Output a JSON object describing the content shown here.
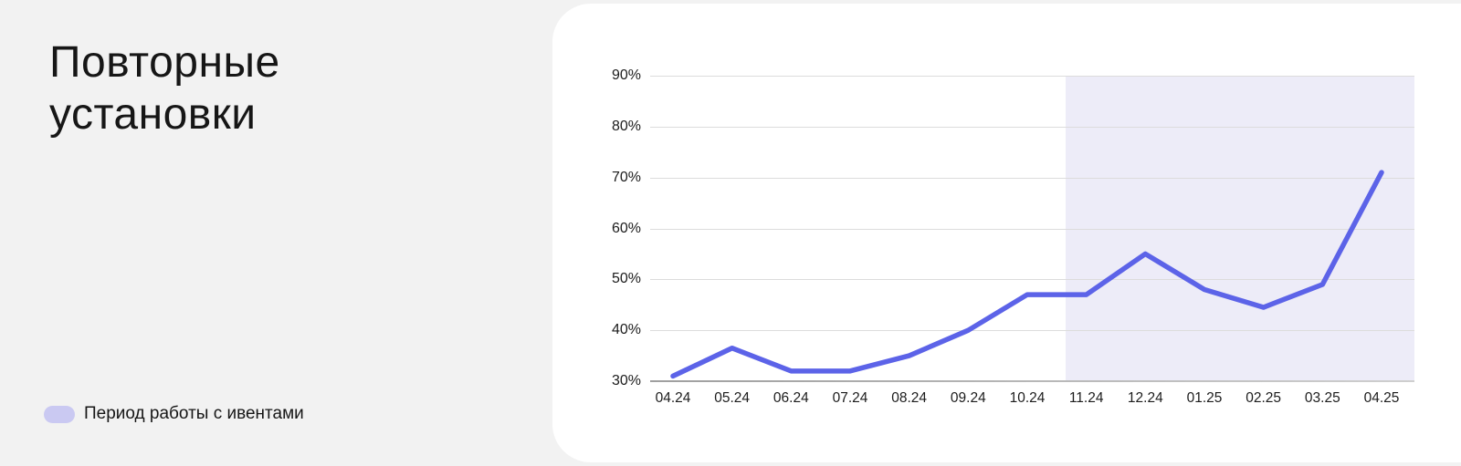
{
  "title": "Повторные установки",
  "legend": {
    "label": "Период работы с ивентами",
    "swatch_color": "#cac9f2"
  },
  "colors": {
    "page_background": "#f2f2f2",
    "card_background": "#ffffff",
    "text": "#161616",
    "gridline": "#dcdcdc",
    "axis_line": "#9f9f9f"
  },
  "chart_data": {
    "type": "line",
    "title": "Повторные установки",
    "categories": [
      "04.24",
      "05.24",
      "06.24",
      "07.24",
      "08.24",
      "09.24",
      "10.24",
      "11.24",
      "12.24",
      "01.25",
      "02.25",
      "03.25",
      "04.25"
    ],
    "series": [
      {
        "name": "Повторные установки, %",
        "values": [
          31,
          36.5,
          32,
          32,
          35,
          40,
          47,
          47,
          55,
          48,
          44.5,
          49,
          71
        ]
      }
    ],
    "xlabel": "",
    "ylabel": "",
    "ylim": [
      30,
      90
    ],
    "y_ticks": [
      90,
      80,
      70,
      60,
      50,
      40,
      30
    ],
    "y_tick_suffix": "%",
    "grid": true,
    "legend_position": "bottom-left-outside",
    "line_color": "#5c63e8",
    "highlight_band": {
      "label": "Период работы с ивентами",
      "color": "#edecf8",
      "starts_between": [
        "10.24",
        "11.24"
      ],
      "start_offset_fraction": 0.65,
      "extends_to_right_edge": true
    }
  }
}
